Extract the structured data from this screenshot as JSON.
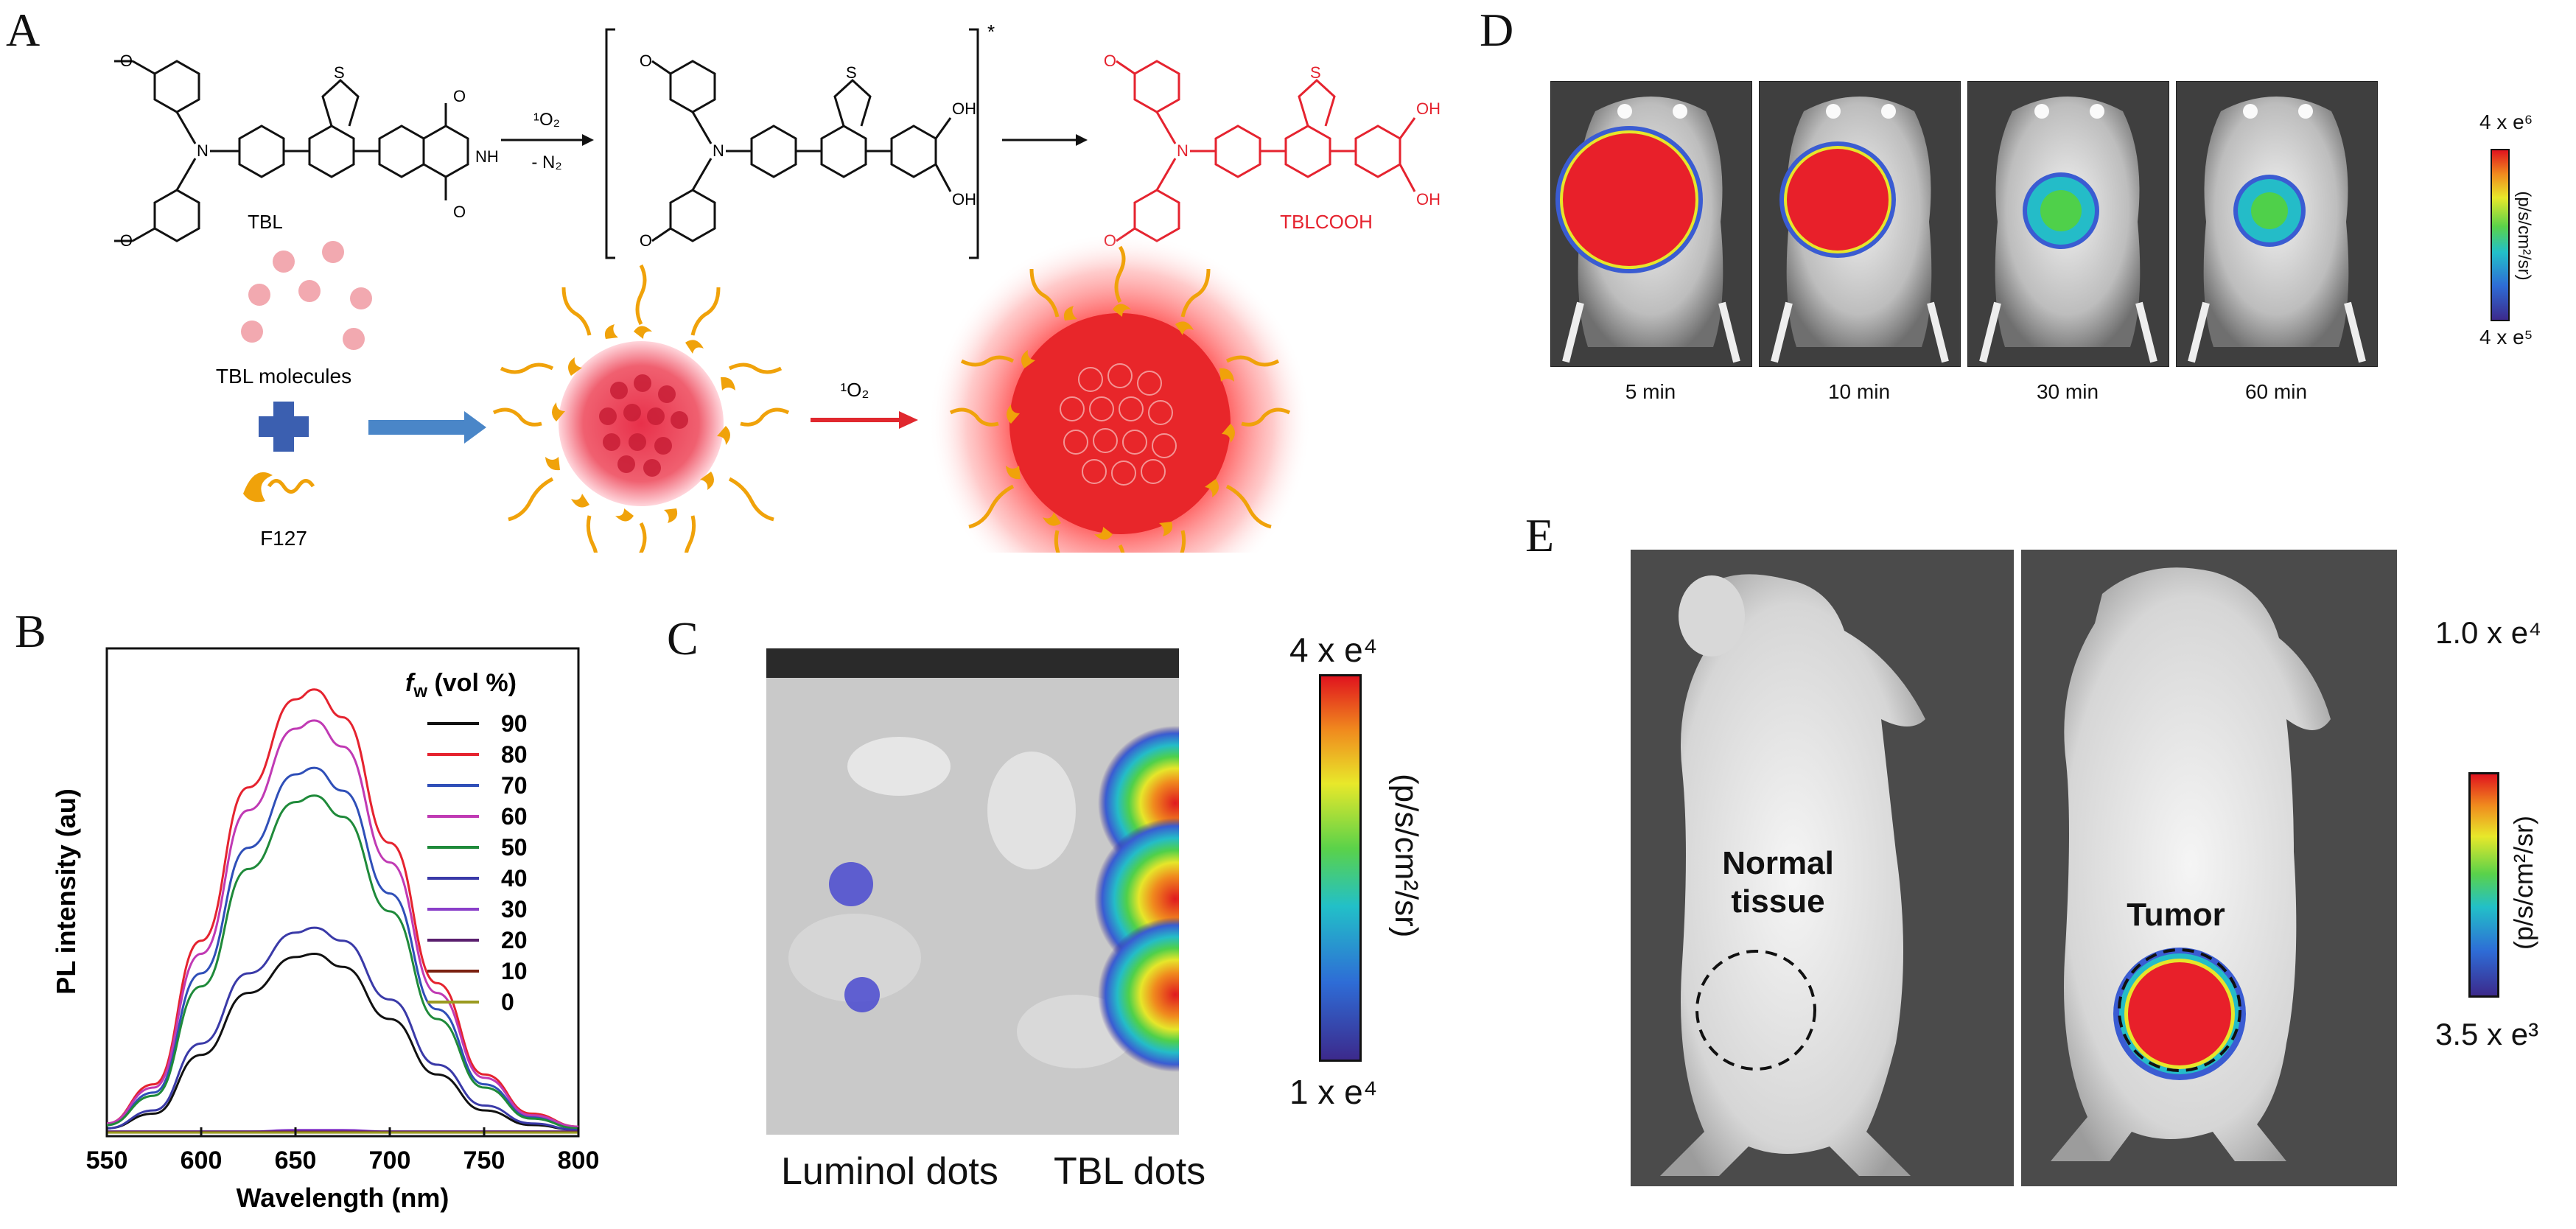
{
  "panel_letters": {
    "a": "A",
    "b": "B",
    "c": "C",
    "d": "D",
    "e": "E"
  },
  "panel_a": {
    "reactant_label": "TBL",
    "reagent_top": "¹O₂",
    "reagent_bottom": "- N₂",
    "intermediate_mark": "*",
    "product_label": "TBLCOOH",
    "group_OH": "OH",
    "group_O": "O",
    "group_NH": "NH",
    "group_S": "S",
    "group_N": "N",
    "molecules_label": "TBL molecules",
    "surfactant_label": "F127",
    "oxidant_label": "¹O₂"
  },
  "panel_b": {
    "xlabel": "Wavelength (nm)",
    "ylabel": "PL intensity (au)",
    "legend_title_main": "f",
    "legend_title_sub": "w",
    "legend_title_rest": " (vol %)"
  },
  "chart_data": {
    "type": "line",
    "xlabel": "Wavelength (nm)",
    "ylabel": "PL intensity (au)",
    "xlim": [
      550,
      800
    ],
    "xticks": [
      550,
      600,
      650,
      700,
      750,
      800
    ],
    "legend_title": "fw (vol %)",
    "legend_position": "top-right",
    "grid": false,
    "y_ticks_shown": false,
    "x": [
      550,
      575,
      600,
      625,
      650,
      660,
      675,
      700,
      725,
      750,
      775,
      800
    ],
    "series": [
      {
        "name": "90",
        "color": "#111111",
        "values": [
          0.03,
          0.12,
          0.48,
          0.86,
          1.08,
          1.1,
          1.02,
          0.7,
          0.36,
          0.14,
          0.05,
          0.02
        ]
      },
      {
        "name": "80",
        "color": "#e5232f",
        "values": [
          0.06,
          0.3,
          1.18,
          2.12,
          2.66,
          2.72,
          2.55,
          1.78,
          0.92,
          0.36,
          0.12,
          0.04
        ]
      },
      {
        "name": "70",
        "color": "#2f4fb8",
        "values": [
          0.05,
          0.25,
          0.98,
          1.75,
          2.2,
          2.24,
          2.1,
          1.47,
          0.76,
          0.3,
          0.1,
          0.03
        ]
      },
      {
        "name": "60",
        "color": "#c03ab4",
        "values": [
          0.06,
          0.28,
          1.1,
          1.98,
          2.48,
          2.53,
          2.37,
          1.66,
          0.86,
          0.34,
          0.11,
          0.04
        ]
      },
      {
        "name": "50",
        "color": "#1f8a3a",
        "values": [
          0.05,
          0.23,
          0.9,
          1.62,
          2.03,
          2.07,
          1.94,
          1.36,
          0.7,
          0.28,
          0.09,
          0.03
        ]
      },
      {
        "name": "40",
        "color": "#3a3aa8",
        "values": [
          0.03,
          0.14,
          0.55,
          0.98,
          1.23,
          1.26,
          1.18,
          0.82,
          0.42,
          0.17,
          0.06,
          0.02
        ]
      },
      {
        "name": "30",
        "color": "#8a3fc9",
        "values": [
          0.01,
          0.01,
          0.01,
          0.01,
          0.02,
          0.02,
          0.02,
          0.01,
          0.01,
          0.01,
          0.01,
          0.01
        ]
      },
      {
        "name": "20",
        "color": "#5a1f6e",
        "values": [
          0.01,
          0.01,
          0.01,
          0.01,
          0.01,
          0.01,
          0.01,
          0.01,
          0.01,
          0.01,
          0.01,
          0.01
        ]
      },
      {
        "name": "10",
        "color": "#7a2010",
        "values": [
          0.005,
          0.005,
          0.005,
          0.005,
          0.006,
          0.006,
          0.006,
          0.005,
          0.005,
          0.005,
          0.005,
          0.005
        ]
      },
      {
        "name": "0",
        "color": "#9a9a20",
        "values": [
          0.004,
          0.004,
          0.004,
          0.004,
          0.004,
          0.004,
          0.004,
          0.004,
          0.004,
          0.004,
          0.004,
          0.004
        ]
      }
    ]
  },
  "panel_c": {
    "scale_max": "4 x e⁴",
    "scale_min": "1 x e⁴",
    "unit": "(p/s/cm²/sr)",
    "label_left": "Luminol dots",
    "label_right": "TBL dots"
  },
  "panel_d": {
    "scale_max": "4 x e⁶",
    "scale_min": "4 x e⁵",
    "unit": "(p/s/cm²/sr)",
    "frames": [
      {
        "time": "5 min",
        "signal": 1.0
      },
      {
        "time": "10 min",
        "signal": 0.65
      },
      {
        "time": "30 min",
        "signal": 0.2
      },
      {
        "time": "60 min",
        "signal": 0.15
      }
    ]
  },
  "panel_e": {
    "scale_max": "1.0 x e⁴",
    "scale_min": "3.5 x e³",
    "unit": "(p/s/cm²/sr)",
    "label_normal_1": "Normal",
    "label_normal_2": "tissue",
    "label_tumor": "Tumor"
  },
  "colors": {
    "product_red": "#e5232f",
    "arrow_blue": "#4a86c8",
    "arrow_red": "#e0282e",
    "surfactant_orange": "#f0a20a",
    "cross_blue": "#3b5fb0"
  }
}
